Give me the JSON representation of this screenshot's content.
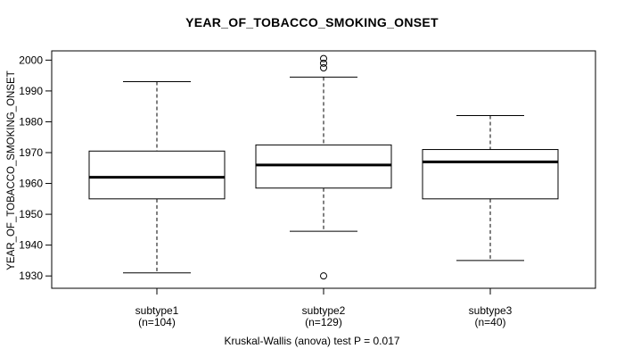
{
  "chart_data": {
    "type": "boxplot",
    "title": "YEAR_OF_TOBACCO_SMOKING_ONSET",
    "ylabel": "YEAR_OF_TOBACCO_SMOKING_ONSET",
    "footer": "Kruskal-Wallis (anova) test P = 0.017",
    "ylim": [
      1926,
      2003
    ],
    "y_ticks": [
      1930,
      1940,
      1950,
      1960,
      1970,
      1980,
      1990,
      2000
    ],
    "grid": false,
    "legend": null,
    "groups": [
      {
        "label": "subtype1",
        "sublabel": "(n=104)",
        "n": 104,
        "whisker_low": 1931,
        "q1": 1955,
        "median": 1962,
        "q3": 1970.5,
        "whisker_high": 1993,
        "outliers": []
      },
      {
        "label": "subtype2",
        "sublabel": "(n=129)",
        "n": 129,
        "whisker_low": 1944.5,
        "q1": 1958.5,
        "median": 1966,
        "q3": 1972.5,
        "whisker_high": 1994.5,
        "outliers": [
          2000.5,
          1999,
          1997.5,
          1930
        ]
      },
      {
        "label": "subtype3",
        "sublabel": "(n=40)",
        "n": 40,
        "whisker_low": 1935,
        "q1": 1955,
        "median": 1967,
        "q3": 1971,
        "whisker_high": 1982,
        "outliers": []
      }
    ]
  }
}
